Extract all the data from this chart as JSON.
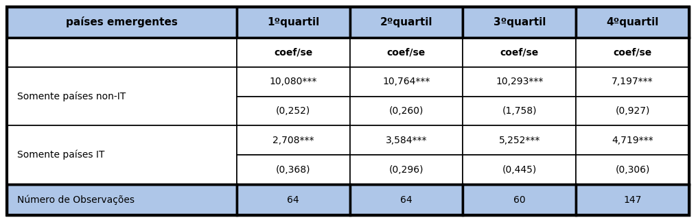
{
  "header_col": "países emergentes",
  "headers": [
    "1ºquartil",
    "2ºquartil",
    "3ºquartil",
    "4ºquartil"
  ],
  "subheader": "coef/se",
  "rows": [
    {
      "label": "Somente países non-IT",
      "values": [
        "10,080***",
        "10,764***",
        "10,293***",
        "7,197***"
      ],
      "se": [
        "(0,252)",
        "(0,260)",
        "(1,758)",
        "(0,927)"
      ]
    },
    {
      "label": "Somente países IT",
      "values": [
        "2,708***",
        "3,584***",
        "5,252***",
        "4,719***"
      ],
      "se": [
        "(0,368)",
        "(0,296)",
        "(0,445)",
        "(0,306)"
      ]
    }
  ],
  "footer_label": "Número de Observações",
  "footer_values": [
    "64",
    "64",
    "60",
    "147"
  ],
  "header_bg": "#aec6e8",
  "footer_bg": "#aec6e8",
  "body_bg": "#ffffff",
  "border_color": "#000000",
  "text_color": "#000000",
  "figsize": [
    10.14,
    3.24
  ],
  "dpi": 100
}
